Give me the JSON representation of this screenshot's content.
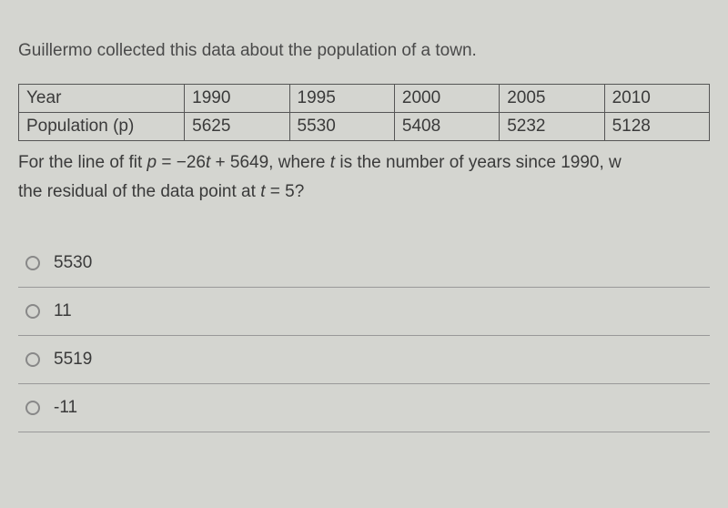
{
  "question": {
    "intro_text": "Guillermo collected this data about the population of a town.",
    "table": {
      "type": "table",
      "columns": [
        "Year",
        "1990",
        "1995",
        "2000",
        "2005",
        "2010"
      ],
      "rows": [
        [
          "Population (p)",
          "5625",
          "5530",
          "5408",
          "5232",
          "5128"
        ]
      ],
      "border_color": "#555555",
      "background_color": "#d4d5d0",
      "cell_font_size": 19
    },
    "equation_line1_pre": "For the line of fit ",
    "equation_line1_var1": "p",
    "equation_line1_mid": " = −26",
    "equation_line1_var2": "t",
    "equation_line1_post": " + 5649, where ",
    "equation_line1_var3": "t",
    "equation_line1_end": " is the number of years since 1990, w",
    "equation_line2_pre": "the residual of the data point at ",
    "equation_line2_var": "t",
    "equation_line2_post": " = 5?"
  },
  "options": [
    {
      "label": "5530"
    },
    {
      "label": "11"
    },
    {
      "label": "5519"
    },
    {
      "label": "-11"
    }
  ],
  "styling": {
    "background_color": "#d4d5d0",
    "text_color": "#3a3a3a",
    "border_color": "#999999",
    "radio_border_color": "#888888",
    "font_size_main": 19
  }
}
